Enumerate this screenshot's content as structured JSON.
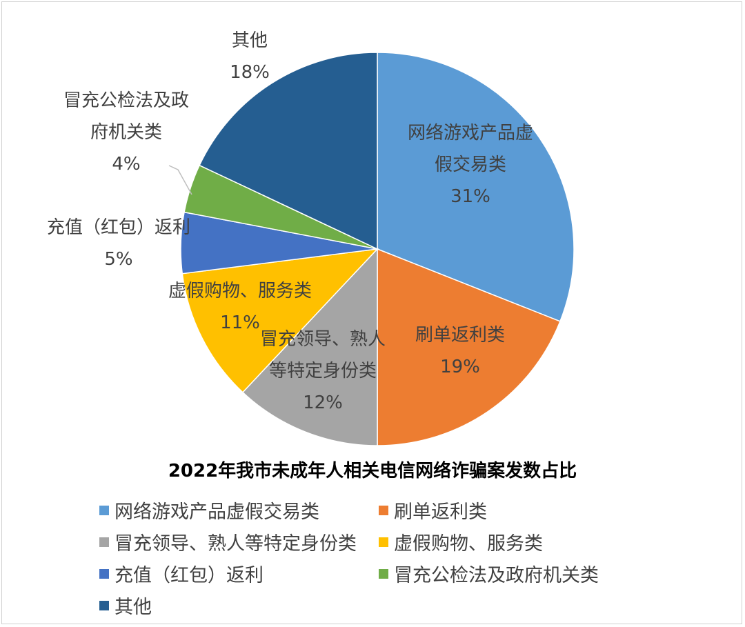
{
  "chart_data": {
    "type": "pie",
    "title": "2022年我市未成年人相关电信网络诈骗案发数占比",
    "legend_position": "bottom",
    "slices": [
      {
        "lines": [
          "网络游戏产品虚",
          "假交易类"
        ],
        "legend": "网络游戏产品虚假交易类",
        "value": 31,
        "pct": "31%",
        "color": "#5B9BD5"
      },
      {
        "lines": [
          "刷单返利类"
        ],
        "legend": "刷单返利类",
        "value": 19,
        "pct": "19%",
        "color": "#ED7D31"
      },
      {
        "lines": [
          "冒充领导、熟人",
          "等特定身份类"
        ],
        "legend": "冒充领导、熟人等特定身份类",
        "value": 12,
        "pct": "12%",
        "color": "#A5A5A5"
      },
      {
        "lines": [
          "虚假购物、服务类"
        ],
        "legend": "虚假购物、服务类",
        "value": 11,
        "pct": "11%",
        "color": "#FFC000"
      },
      {
        "lines": [
          "充值（红包）返利"
        ],
        "legend": "充值（红包）返利",
        "value": 5,
        "pct": "5%",
        "color": "#4472C4"
      },
      {
        "lines": [
          "冒充公检法及政",
          "府机关类"
        ],
        "legend": "冒充公检法及政府机关类",
        "value": 4,
        "pct": "4%",
        "color": "#70AD47"
      },
      {
        "lines": [
          "其他"
        ],
        "legend": "其他",
        "value": 18,
        "pct": "18%",
        "color": "#255E91"
      }
    ]
  }
}
